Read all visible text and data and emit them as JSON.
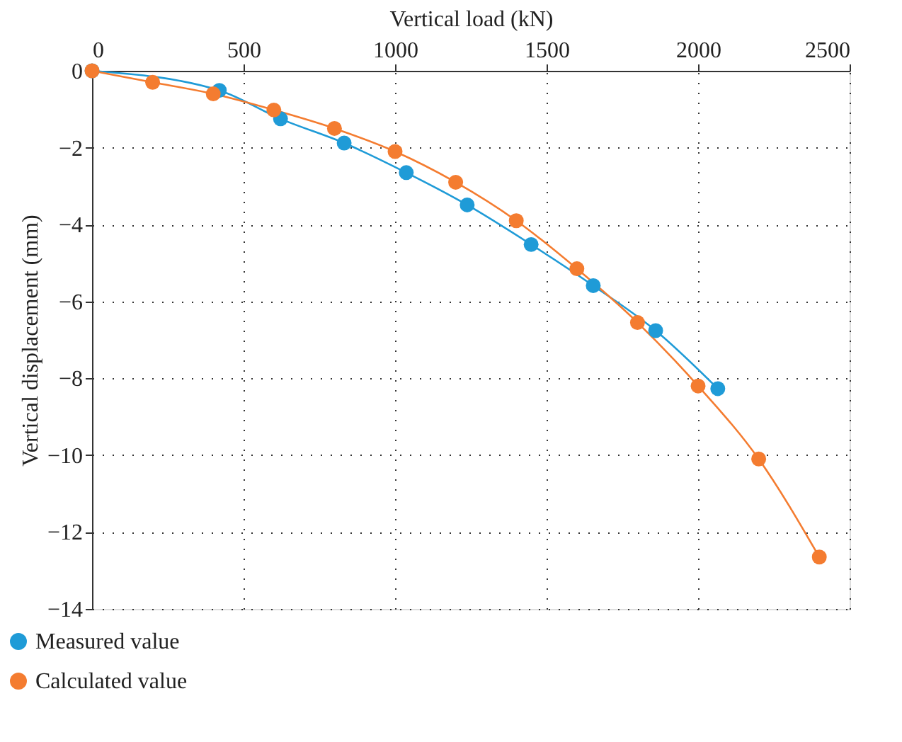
{
  "chart_data": {
    "type": "line",
    "xlabel": "Vertical load (kN)",
    "ylabel": "Vertical displacement (mm)",
    "xlim": [
      0,
      2500
    ],
    "xticks": [
      0,
      500,
      1000,
      1500,
      2000,
      2500
    ],
    "ylim": [
      -14,
      0
    ],
    "yticks": [
      {
        "value": -14,
        "label": "−14"
      },
      {
        "value": -12,
        "label": "−12"
      },
      {
        "value": -10,
        "label": "−10"
      },
      {
        "value": -8,
        "label": "−8"
      },
      {
        "value": -6,
        "label": "−6"
      },
      {
        "value": -4,
        "label": "−4"
      },
      {
        "value": -2,
        "label": "−2"
      },
      0
    ],
    "grid": true,
    "legend": "bottom left",
    "marker": "circle",
    "line_style": "solid",
    "series": [
      {
        "name": "Measured value",
        "color": "#1f9bd7",
        "x": [
          0,
          420,
          622,
          832,
          1037,
          1238,
          1449,
          1654,
          1860,
          2065
        ],
        "values": [
          0,
          -0.51,
          -1.25,
          -1.88,
          -2.65,
          -3.49,
          -4.52,
          -5.59,
          -6.76,
          -8.27
        ]
      },
      {
        "name": "Calculated value",
        "color": "#f47c30",
        "x": [
          0,
          200,
          400,
          600,
          800,
          1000,
          1200,
          1400,
          1600,
          1800,
          2000,
          2200,
          2400
        ],
        "values": [
          0,
          -0.3,
          -0.6,
          -1.02,
          -1.5,
          -2.1,
          -2.9,
          -3.9,
          -5.15,
          -6.55,
          -8.2,
          -10.1,
          -12.65
        ]
      }
    ]
  }
}
